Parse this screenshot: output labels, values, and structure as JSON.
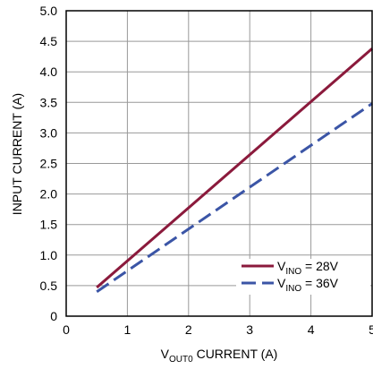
{
  "chart_data": {
    "type": "line",
    "xlabel": {
      "main": "V",
      "sub": "OUT0",
      "rest": " CURRENT (A)"
    },
    "ylabel": "INPUT CURRENT (A)",
    "xlim": [
      0,
      5
    ],
    "ylim": [
      0,
      5
    ],
    "x_ticks": [
      "0",
      "1",
      "2",
      "3",
      "4",
      "5"
    ],
    "y_ticks": [
      "0",
      "0.5",
      "1.0",
      "1.5",
      "2.0",
      "2.5",
      "3.0",
      "3.5",
      "4.0",
      "4.5",
      "5.0"
    ],
    "grid": true,
    "legend_position": "bottom-right",
    "series": [
      {
        "legend": {
          "main": "V",
          "sub": "INO",
          "rest": " = 28V"
        },
        "color": "#8b1a3c",
        "style": "solid",
        "x": [
          0.5,
          5.0
        ],
        "y": [
          0.47,
          4.38
        ]
      },
      {
        "legend": {
          "main": "V",
          "sub": "INO",
          "rest": " = 36V"
        },
        "color": "#3b55a6",
        "style": "dashed",
        "x": [
          0.5,
          5.0
        ],
        "y": [
          0.4,
          3.48
        ]
      }
    ]
  }
}
